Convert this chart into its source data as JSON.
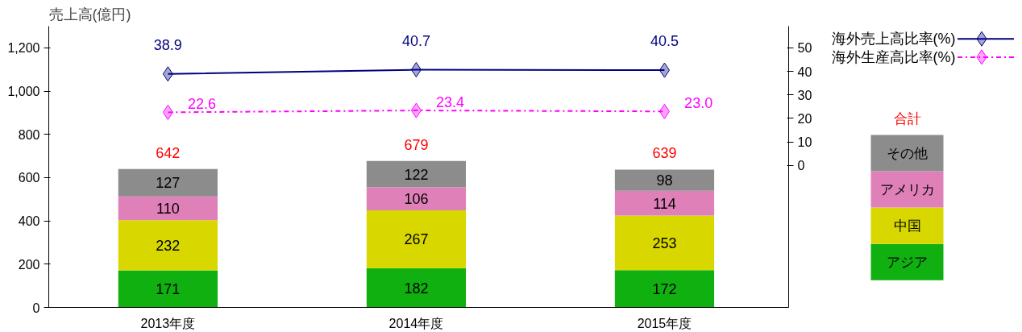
{
  "chart_data": {
    "type": "bar",
    "stacked": true,
    "ylabel": "売上高(億円)",
    "legend_title": "合計",
    "categories": [
      "2013年度",
      "2014年度",
      "2015年度"
    ],
    "series": [
      {
        "name": "アジア",
        "color": "#10b010",
        "values": [
          171,
          182,
          172
        ],
        "value_labels": [
          "171",
          "182",
          "172"
        ]
      },
      {
        "name": "中国",
        "color": "#d8d800",
        "values": [
          232,
          267,
          253
        ],
        "value_labels": [
          "232",
          "267",
          "253"
        ]
      },
      {
        "name": "アメリカ",
        "color": "#e080b8",
        "values": [
          110,
          106,
          114
        ],
        "value_labels": [
          "110",
          "106",
          "114"
        ]
      },
      {
        "name": "その他",
        "color": "#8c8c8c",
        "values": [
          127,
          122,
          98
        ],
        "value_labels": [
          "127",
          "122",
          "98"
        ]
      },
      {
        "name": "海外売上高比率(%)",
        "type": "line",
        "axis": "y2",
        "color": "#000080",
        "marker": "diamond",
        "line_style": "solid",
        "values": [
          38.9,
          40.7,
          40.5
        ],
        "value_labels": [
          "38.9",
          "40.7",
          "40.5"
        ]
      },
      {
        "name": "海外生産高比率(%)",
        "type": "line",
        "axis": "y2",
        "color": "#ff00ff",
        "marker": "diamond",
        "line_style": "dashdot",
        "values": [
          22.6,
          23.4,
          23.0
        ],
        "value_labels": [
          "22.6",
          "23.4",
          "23.0"
        ]
      }
    ],
    "totals": [
      "642",
      "679",
      "639"
    ],
    "data_labels": true,
    "ylim": [
      0,
      1300
    ],
    "yticks": [
      0,
      200,
      400,
      600,
      800,
      {
        "value": 1000,
        "label": "1,000"
      },
      {
        "value": 1200,
        "label": "1,200"
      }
    ],
    "y2lim": [
      -60.3,
      59.2
    ],
    "y2ticks": [
      0,
      10,
      20,
      30,
      40,
      50
    ],
    "grid": false,
    "legend": "right"
  }
}
